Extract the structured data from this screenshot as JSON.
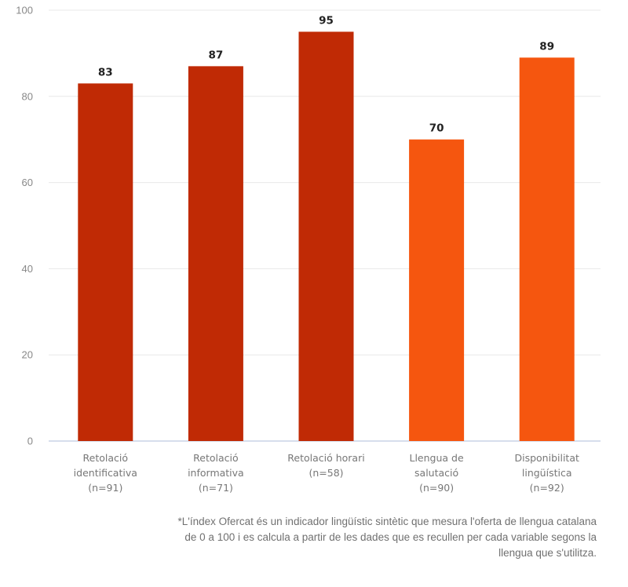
{
  "chart_data": {
    "type": "bar",
    "title": "",
    "xlabel": "",
    "ylabel": "",
    "ylim": [
      0,
      100
    ],
    "yticks": [
      0,
      20,
      40,
      60,
      80,
      100
    ],
    "grid": true,
    "legend": "none",
    "categories": [
      [
        "Retolació",
        "identificativa",
        "(n=91)"
      ],
      [
        "Retolació",
        "informativa",
        "(n=71)"
      ],
      [
        "Retolació horari",
        "(n=58)"
      ],
      [
        "Llengua de",
        "salutació",
        "(n=90)"
      ],
      [
        "Disponibilitat",
        "lingüística",
        "(n=92)"
      ]
    ],
    "values": [
      83,
      87,
      95,
      70,
      89
    ],
    "data_labels": [
      "83",
      "87",
      "95",
      "70",
      "89"
    ],
    "bar_colors": [
      "#C02A05",
      "#C02A05",
      "#C02A05",
      "#F5560F",
      "#F5560F"
    ]
  },
  "footnote": [
    "*L'índex Ofercat és un indicador lingüístic sintètic que mesura l'oferta de llengua catalana",
    "de 0 a 100 i es calcula a partir de les dades que es recullen per cada variable segons la",
    "llengua que s'utilitza."
  ],
  "colors": {
    "grid": "#E8E8E8",
    "axis": "#C8D4E6"
  }
}
